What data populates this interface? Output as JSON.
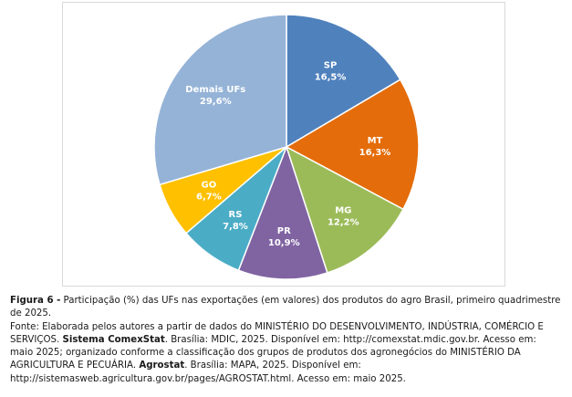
{
  "chart_data": {
    "type": "pie",
    "title": "",
    "legend": "none",
    "slices": [
      {
        "label": "SP",
        "value_label": "16,5%",
        "value": 16.5,
        "color": "#4f81bd"
      },
      {
        "label": "MT",
        "value_label": "16,3%",
        "value": 16.3,
        "color": "#e46c0a"
      },
      {
        "label": "MG",
        "value_label": "12,2%",
        "value": 12.2,
        "color": "#9bbb59"
      },
      {
        "label": "PR",
        "value_label": "10,9%",
        "value": 10.9,
        "color": "#8064a2"
      },
      {
        "label": "RS",
        "value_label": "7,8%",
        "value": 7.8,
        "color": "#4bacc6"
      },
      {
        "label": "GO",
        "value_label": "6,7%",
        "value": 6.7,
        "color": "#ffc000"
      },
      {
        "label": "Demais UFs",
        "value_label": "29,6%",
        "value": 29.6,
        "color": "#95b3d7"
      }
    ]
  },
  "caption": {
    "figure_label": "Figura 6 -",
    "figure_text": " Participação (%) das UFs nas exportações (em valores) dos produtos do agro Brasil, primeiro quadrimestre de 2025.",
    "source_prefix": "Fonte: Elaborada pelos autores a partir de dados do MINISTÉRIO DO DESENVOLVIMENTO, INDÚSTRIA, COMÉRCIO E SERVIÇOS. ",
    "source_bold_1": "Sistema ComexStat",
    "source_mid": ". Brasília: MDIC, 2025. Disponível em: http://comexstat.mdic.gov.br. Acesso em: maio 2025; organizado conforme a classificação dos grupos de produtos dos agronegócios do MINISTÉRIO DA AGRICULTURA E PECUÁRIA. ",
    "source_bold_2": "Agrostat",
    "source_suffix": ". Brasília: MAPA, 2025. Disponível em: http://sistemasweb.agricultura.gov.br/pages/AGROSTAT.html. Acesso em: maio 2025."
  }
}
